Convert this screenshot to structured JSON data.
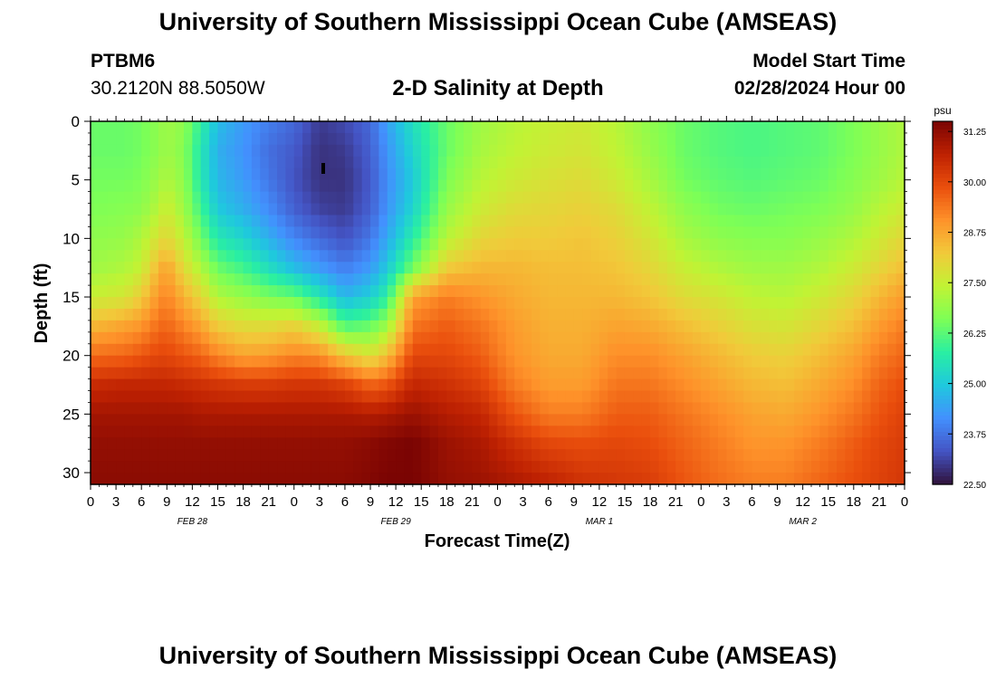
{
  "header": {
    "title": "University of Southern Mississippi Ocean Cube (AMSEAS)",
    "station": "PTBM6",
    "coords": "30.2120N  88.5050W",
    "subtitle": "2-D Salinity at Depth",
    "model_start_label": "Model Start Time",
    "model_start_value": "02/28/2024 Hour 00"
  },
  "footer": {
    "title": "University of Southern Mississippi Ocean Cube (AMSEAS)"
  },
  "chart_data": {
    "type": "heatmap",
    "title": "2-D Salinity at Depth",
    "xlabel": "Forecast Time(Z)",
    "ylabel": "Depth (ft)",
    "xlim": [
      0,
      96
    ],
    "ylim": [
      0,
      31
    ],
    "x_tick_values": [
      0,
      3,
      6,
      9,
      12,
      15,
      18,
      21,
      24,
      27,
      30,
      33,
      36,
      39,
      42,
      45,
      48,
      51,
      54,
      57,
      60,
      63,
      66,
      69,
      72,
      75,
      78,
      81,
      84,
      87,
      90,
      93,
      96
    ],
    "x_tick_labels": [
      "0",
      "3",
      "6",
      "9",
      "12",
      "15",
      "18",
      "21",
      "0",
      "3",
      "6",
      "9",
      "12",
      "15",
      "18",
      "21",
      "0",
      "3",
      "6",
      "9",
      "12",
      "15",
      "18",
      "21",
      "0",
      "3",
      "6",
      "9",
      "12",
      "15",
      "18",
      "21",
      "0"
    ],
    "date_labels": [
      {
        "label": "FEB 28",
        "x": 12
      },
      {
        "label": "FEB 29",
        "x": 36
      },
      {
        "label": "MAR 1",
        "x": 60
      },
      {
        "label": "MAR 2",
        "x": 84
      }
    ],
    "y_ticks": [
      0,
      5,
      10,
      15,
      20,
      25,
      30
    ],
    "colorbar": {
      "unit": "psu",
      "min": 22.5,
      "max": 31.5,
      "ticks": [
        "31.25",
        "30.00",
        "28.75",
        "27.50",
        "26.25",
        "25.00",
        "23.75",
        "22.50"
      ],
      "colors": [
        "#30123b",
        "#4454c4",
        "#4390fe",
        "#1fc8de",
        "#29efa2",
        "#7dff56",
        "#c1f334",
        "#f1ca3a",
        "#fe922a",
        "#ea4f0d",
        "#be2102",
        "#7a0403"
      ]
    },
    "profile_columns": [
      {
        "t": 0,
        "s": [
          26.4,
          26.4,
          26.5,
          26.6,
          26.8,
          27.0,
          27.5,
          28.5,
          29.5,
          30.5,
          31.0,
          31.2,
          31.3
        ]
      },
      {
        "t": 4,
        "s": [
          26.4,
          26.4,
          26.5,
          26.7,
          26.9,
          27.2,
          27.7,
          28.8,
          29.6,
          30.6,
          31.0,
          31.2,
          31.3
        ]
      },
      {
        "t": 6,
        "s": [
          26.5,
          26.5,
          26.6,
          26.8,
          27.2,
          27.5,
          28.2,
          29.0,
          29.8,
          30.6,
          31.0,
          31.2,
          31.3
        ]
      },
      {
        "t": 8,
        "s": [
          26.8,
          26.8,
          27.0,
          27.3,
          27.8,
          28.5,
          29.0,
          29.5,
          30.0,
          30.6,
          31.0,
          31.2,
          31.3
        ]
      },
      {
        "t": 9,
        "s": [
          27.0,
          27.0,
          27.2,
          27.6,
          28.0,
          28.8,
          29.2,
          29.6,
          30.0,
          30.6,
          31.0,
          31.2,
          31.3
        ]
      },
      {
        "t": 11,
        "s": [
          26.8,
          26.7,
          26.8,
          27.0,
          27.4,
          27.9,
          28.6,
          29.2,
          29.8,
          30.5,
          31.0,
          31.2,
          31.3
        ]
      },
      {
        "t": 13,
        "s": [
          25.8,
          25.6,
          25.6,
          26.0,
          26.5,
          27.2,
          28.0,
          28.8,
          29.6,
          30.4,
          30.9,
          31.2,
          31.3
        ]
      },
      {
        "t": 15,
        "s": [
          24.8,
          24.6,
          24.7,
          25.0,
          25.6,
          26.4,
          27.2,
          28.2,
          29.2,
          30.3,
          30.9,
          31.2,
          31.3
        ]
      },
      {
        "t": 18,
        "s": [
          24.3,
          24.2,
          24.3,
          24.6,
          25.2,
          26.0,
          26.9,
          27.9,
          28.8,
          30.2,
          30.9,
          31.2,
          31.3
        ]
      },
      {
        "t": 21,
        "s": [
          23.9,
          23.7,
          23.8,
          24.1,
          24.6,
          25.4,
          26.6,
          27.9,
          28.9,
          30.2,
          30.9,
          31.2,
          31.3
        ]
      },
      {
        "t": 24,
        "s": [
          23.6,
          23.4,
          23.3,
          23.5,
          24.0,
          24.8,
          26.4,
          28.1,
          29.2,
          30.3,
          30.9,
          31.2,
          31.3
        ]
      },
      {
        "t": 27,
        "s": [
          23.0,
          22.9,
          22.9,
          23.1,
          23.6,
          24.3,
          25.6,
          27.5,
          29.1,
          30.3,
          30.9,
          31.2,
          31.3
        ]
      },
      {
        "t": 30,
        "s": [
          23.2,
          23.0,
          22.9,
          23.0,
          23.3,
          23.9,
          24.7,
          26.2,
          28.3,
          30.1,
          30.9,
          31.2,
          31.3
        ]
      },
      {
        "t": 33,
        "s": [
          23.6,
          23.5,
          23.4,
          23.5,
          23.8,
          24.3,
          25.1,
          26.4,
          27.8,
          29.6,
          30.8,
          31.3,
          31.4
        ]
      },
      {
        "t": 35,
        "s": [
          24.4,
          24.2,
          24.1,
          24.2,
          24.5,
          25.0,
          25.8,
          27.0,
          28.4,
          29.8,
          30.9,
          31.4,
          31.5
        ]
      },
      {
        "t": 38,
        "s": [
          25.4,
          25.2,
          25.0,
          25.2,
          25.7,
          26.5,
          28.8,
          29.4,
          30.0,
          30.6,
          31.1,
          31.5,
          31.5
        ]
      },
      {
        "t": 42,
        "s": [
          26.4,
          26.4,
          26.6,
          26.9,
          27.3,
          28.2,
          29.3,
          29.7,
          30.0,
          30.4,
          30.8,
          31.1,
          31.2
        ]
      },
      {
        "t": 46,
        "s": [
          27.0,
          27.1,
          27.3,
          27.6,
          28.0,
          28.5,
          29.0,
          29.4,
          29.7,
          30.1,
          30.6,
          30.9,
          31.1
        ]
      },
      {
        "t": 50,
        "s": [
          27.3,
          27.4,
          27.6,
          27.9,
          28.2,
          28.5,
          28.7,
          28.9,
          29.0,
          29.3,
          29.8,
          30.4,
          30.9
        ]
      },
      {
        "t": 54,
        "s": [
          27.5,
          27.6,
          27.8,
          28.0,
          28.2,
          28.4,
          28.5,
          28.6,
          28.7,
          28.9,
          29.3,
          30.0,
          30.7
        ]
      },
      {
        "t": 58,
        "s": [
          27.6,
          27.7,
          27.9,
          28.1,
          28.3,
          28.4,
          28.5,
          28.6,
          28.7,
          28.9,
          29.3,
          29.9,
          30.4
        ]
      },
      {
        "t": 62,
        "s": [
          27.3,
          27.4,
          27.6,
          27.9,
          28.1,
          28.3,
          28.5,
          28.8,
          29.1,
          29.4,
          29.7,
          30.0,
          30.3
        ]
      },
      {
        "t": 66,
        "s": [
          26.8,
          26.9,
          27.1,
          27.4,
          27.7,
          28.0,
          28.3,
          28.7,
          29.1,
          29.4,
          29.7,
          29.9,
          30.2
        ]
      },
      {
        "t": 70,
        "s": [
          26.4,
          26.4,
          26.5,
          26.8,
          27.1,
          27.5,
          27.9,
          28.4,
          28.8,
          29.1,
          29.4,
          29.6,
          29.8
        ]
      },
      {
        "t": 74,
        "s": [
          26.2,
          26.2,
          26.3,
          26.5,
          26.8,
          27.2,
          27.7,
          28.1,
          28.5,
          28.8,
          29.1,
          29.3,
          29.5
        ]
      },
      {
        "t": 78,
        "s": [
          26.1,
          26.1,
          26.2,
          26.4,
          26.7,
          27.0,
          27.4,
          27.8,
          28.2,
          28.5,
          28.8,
          29.0,
          29.3
        ]
      },
      {
        "t": 82,
        "s": [
          26.2,
          26.2,
          26.3,
          26.5,
          26.7,
          27.0,
          27.3,
          27.7,
          28.1,
          28.4,
          28.7,
          29.0,
          29.3
        ]
      },
      {
        "t": 86,
        "s": [
          26.3,
          26.3,
          26.4,
          26.6,
          26.9,
          27.2,
          27.6,
          28.0,
          28.4,
          28.7,
          29.0,
          29.3,
          29.6
        ]
      },
      {
        "t": 90,
        "s": [
          26.6,
          26.6,
          26.7,
          26.9,
          27.2,
          27.6,
          28.0,
          28.4,
          28.8,
          29.1,
          29.4,
          29.7,
          29.9
        ]
      },
      {
        "t": 93,
        "s": [
          26.9,
          26.9,
          27.0,
          27.3,
          27.6,
          28.0,
          28.5,
          28.9,
          29.3,
          29.6,
          29.8,
          30.0,
          30.1
        ]
      },
      {
        "t": 96,
        "s": [
          27.2,
          27.2,
          27.3,
          27.6,
          28.0,
          28.4,
          28.9,
          29.3,
          29.6,
          29.9,
          30.1,
          30.2,
          30.3
        ]
      }
    ],
    "profile_depths": [
      0,
      2.5,
      5,
      7.5,
      10,
      12.5,
      15,
      17.5,
      20,
      22.5,
      25,
      27.5,
      31
    ]
  }
}
